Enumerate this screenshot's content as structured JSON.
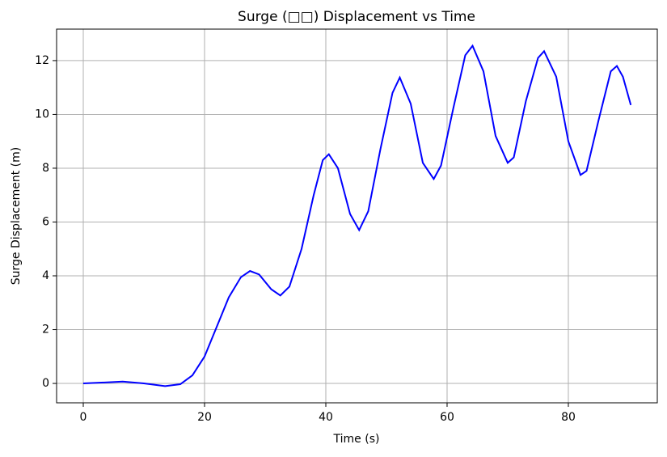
{
  "chart_data": {
    "type": "line",
    "title": "Surge (□□) Displacement vs Time",
    "x_label": "Time (s)",
    "y_label": "Surge Displacement (m)",
    "x": [
      0,
      3,
      6.5,
      10,
      13.5,
      16,
      18,
      20,
      22,
      24,
      26,
      27.5,
      29,
      31,
      32.5,
      34,
      36,
      38,
      39.5,
      40.5,
      42,
      44,
      45.5,
      47,
      49,
      51,
      52.2,
      54,
      56,
      57.8,
      59,
      61,
      63,
      64.2,
      66,
      68,
      70,
      71,
      73,
      75,
      76,
      78,
      80,
      82,
      83,
      85,
      87,
      88,
      89,
      90.3
    ],
    "series": [
      {
        "name": "Surge",
        "color": "#0000ff",
        "values": [
          0,
          0.03,
          0.07,
          0.0,
          -0.1,
          -0.03,
          0.3,
          1.0,
          2.1,
          3.2,
          3.95,
          4.18,
          4.05,
          3.5,
          3.27,
          3.6,
          5.0,
          7.0,
          8.3,
          8.52,
          8.0,
          6.3,
          5.7,
          6.4,
          8.7,
          10.8,
          11.37,
          10.4,
          8.2,
          7.6,
          8.1,
          10.2,
          12.2,
          12.55,
          11.6,
          9.2,
          8.2,
          8.4,
          10.5,
          12.1,
          12.35,
          11.4,
          9.0,
          7.75,
          7.9,
          9.8,
          11.6,
          11.8,
          11.4,
          10.35
        ]
      }
    ],
    "xlim": [
      -4.4,
      94.67
    ],
    "ylim": [
      -0.72,
      13.17
    ],
    "xticks": [
      0,
      20,
      40,
      60,
      80
    ],
    "yticks": [
      0,
      2,
      4,
      6,
      8,
      10,
      12
    ],
    "grid": true
  }
}
